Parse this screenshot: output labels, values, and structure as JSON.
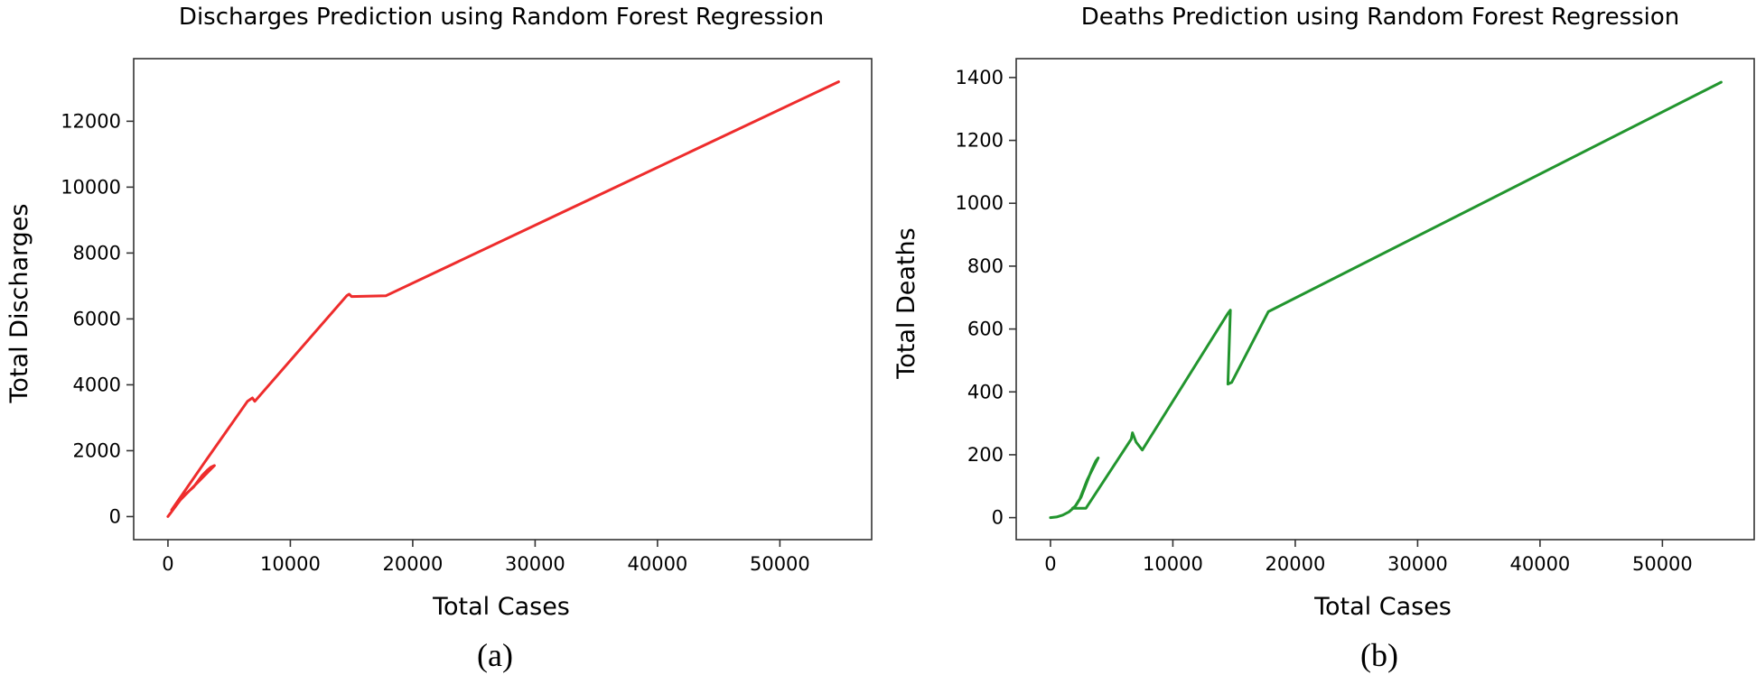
{
  "chart_data": [
    {
      "type": "line",
      "title": "Discharges Prediction using Random Forest Regression",
      "xlabel": "Total Cases",
      "ylabel": "Total Discharges",
      "caption": "(a)",
      "color": "#ee2c2c",
      "xlim": [
        -2800,
        57500
      ],
      "ylim": [
        -700,
        13900
      ],
      "xticks": [
        0,
        10000,
        20000,
        30000,
        40000,
        50000
      ],
      "yticks": [
        0,
        2000,
        4000,
        6000,
        8000,
        10000,
        12000
      ],
      "grid": false,
      "series": [
        {
          "x": [
            0,
            200,
            400,
            700,
            1000,
            1200,
            1500,
            1800,
            2100,
            2500,
            2800,
            3200,
            3500,
            3800,
            3400,
            3000,
            2600,
            2200,
            1800,
            1400,
            1000,
            600,
            300,
            3000,
            6500,
            6900,
            7100,
            14600,
            14800,
            15000,
            17800,
            54800
          ],
          "y": [
            0,
            100,
            200,
            350,
            500,
            600,
            700,
            800,
            900,
            1100,
            1250,
            1400,
            1500,
            1550,
            1400,
            1250,
            1100,
            950,
            800,
            650,
            500,
            350,
            200,
            1650,
            3500,
            3600,
            3500,
            6700,
            6750,
            6680,
            6700,
            13200
          ]
        }
      ]
    },
    {
      "type": "line",
      "title": "Deaths Prediction using Random Forest Regression",
      "xlabel": "Total Cases",
      "ylabel": "Total Deaths",
      "caption": "(b)",
      "color": "#22952e",
      "xlim": [
        -2800,
        57500
      ],
      "ylim": [
        -70,
        1460
      ],
      "xticks": [
        0,
        10000,
        20000,
        30000,
        40000,
        50000
      ],
      "yticks": [
        0,
        200,
        400,
        600,
        800,
        1000,
        1200,
        1400
      ],
      "grid": false,
      "series": [
        {
          "x": [
            0,
            500,
            1000,
            1500,
            1800,
            2100,
            2500,
            2800,
            3100,
            3400,
            3700,
            3900,
            3000,
            2400,
            2000,
            1800,
            2900,
            6600,
            6700,
            6900,
            7000,
            7500,
            14500,
            14700,
            14500,
            14800,
            17800,
            54800
          ],
          "y": [
            0,
            2,
            8,
            18,
            28,
            40,
            65,
            95,
            125,
            155,
            180,
            190,
            120,
            60,
            35,
            30,
            30,
            250,
            270,
            250,
            240,
            215,
            650,
            660,
            425,
            430,
            655,
            1385
          ]
        }
      ]
    }
  ]
}
